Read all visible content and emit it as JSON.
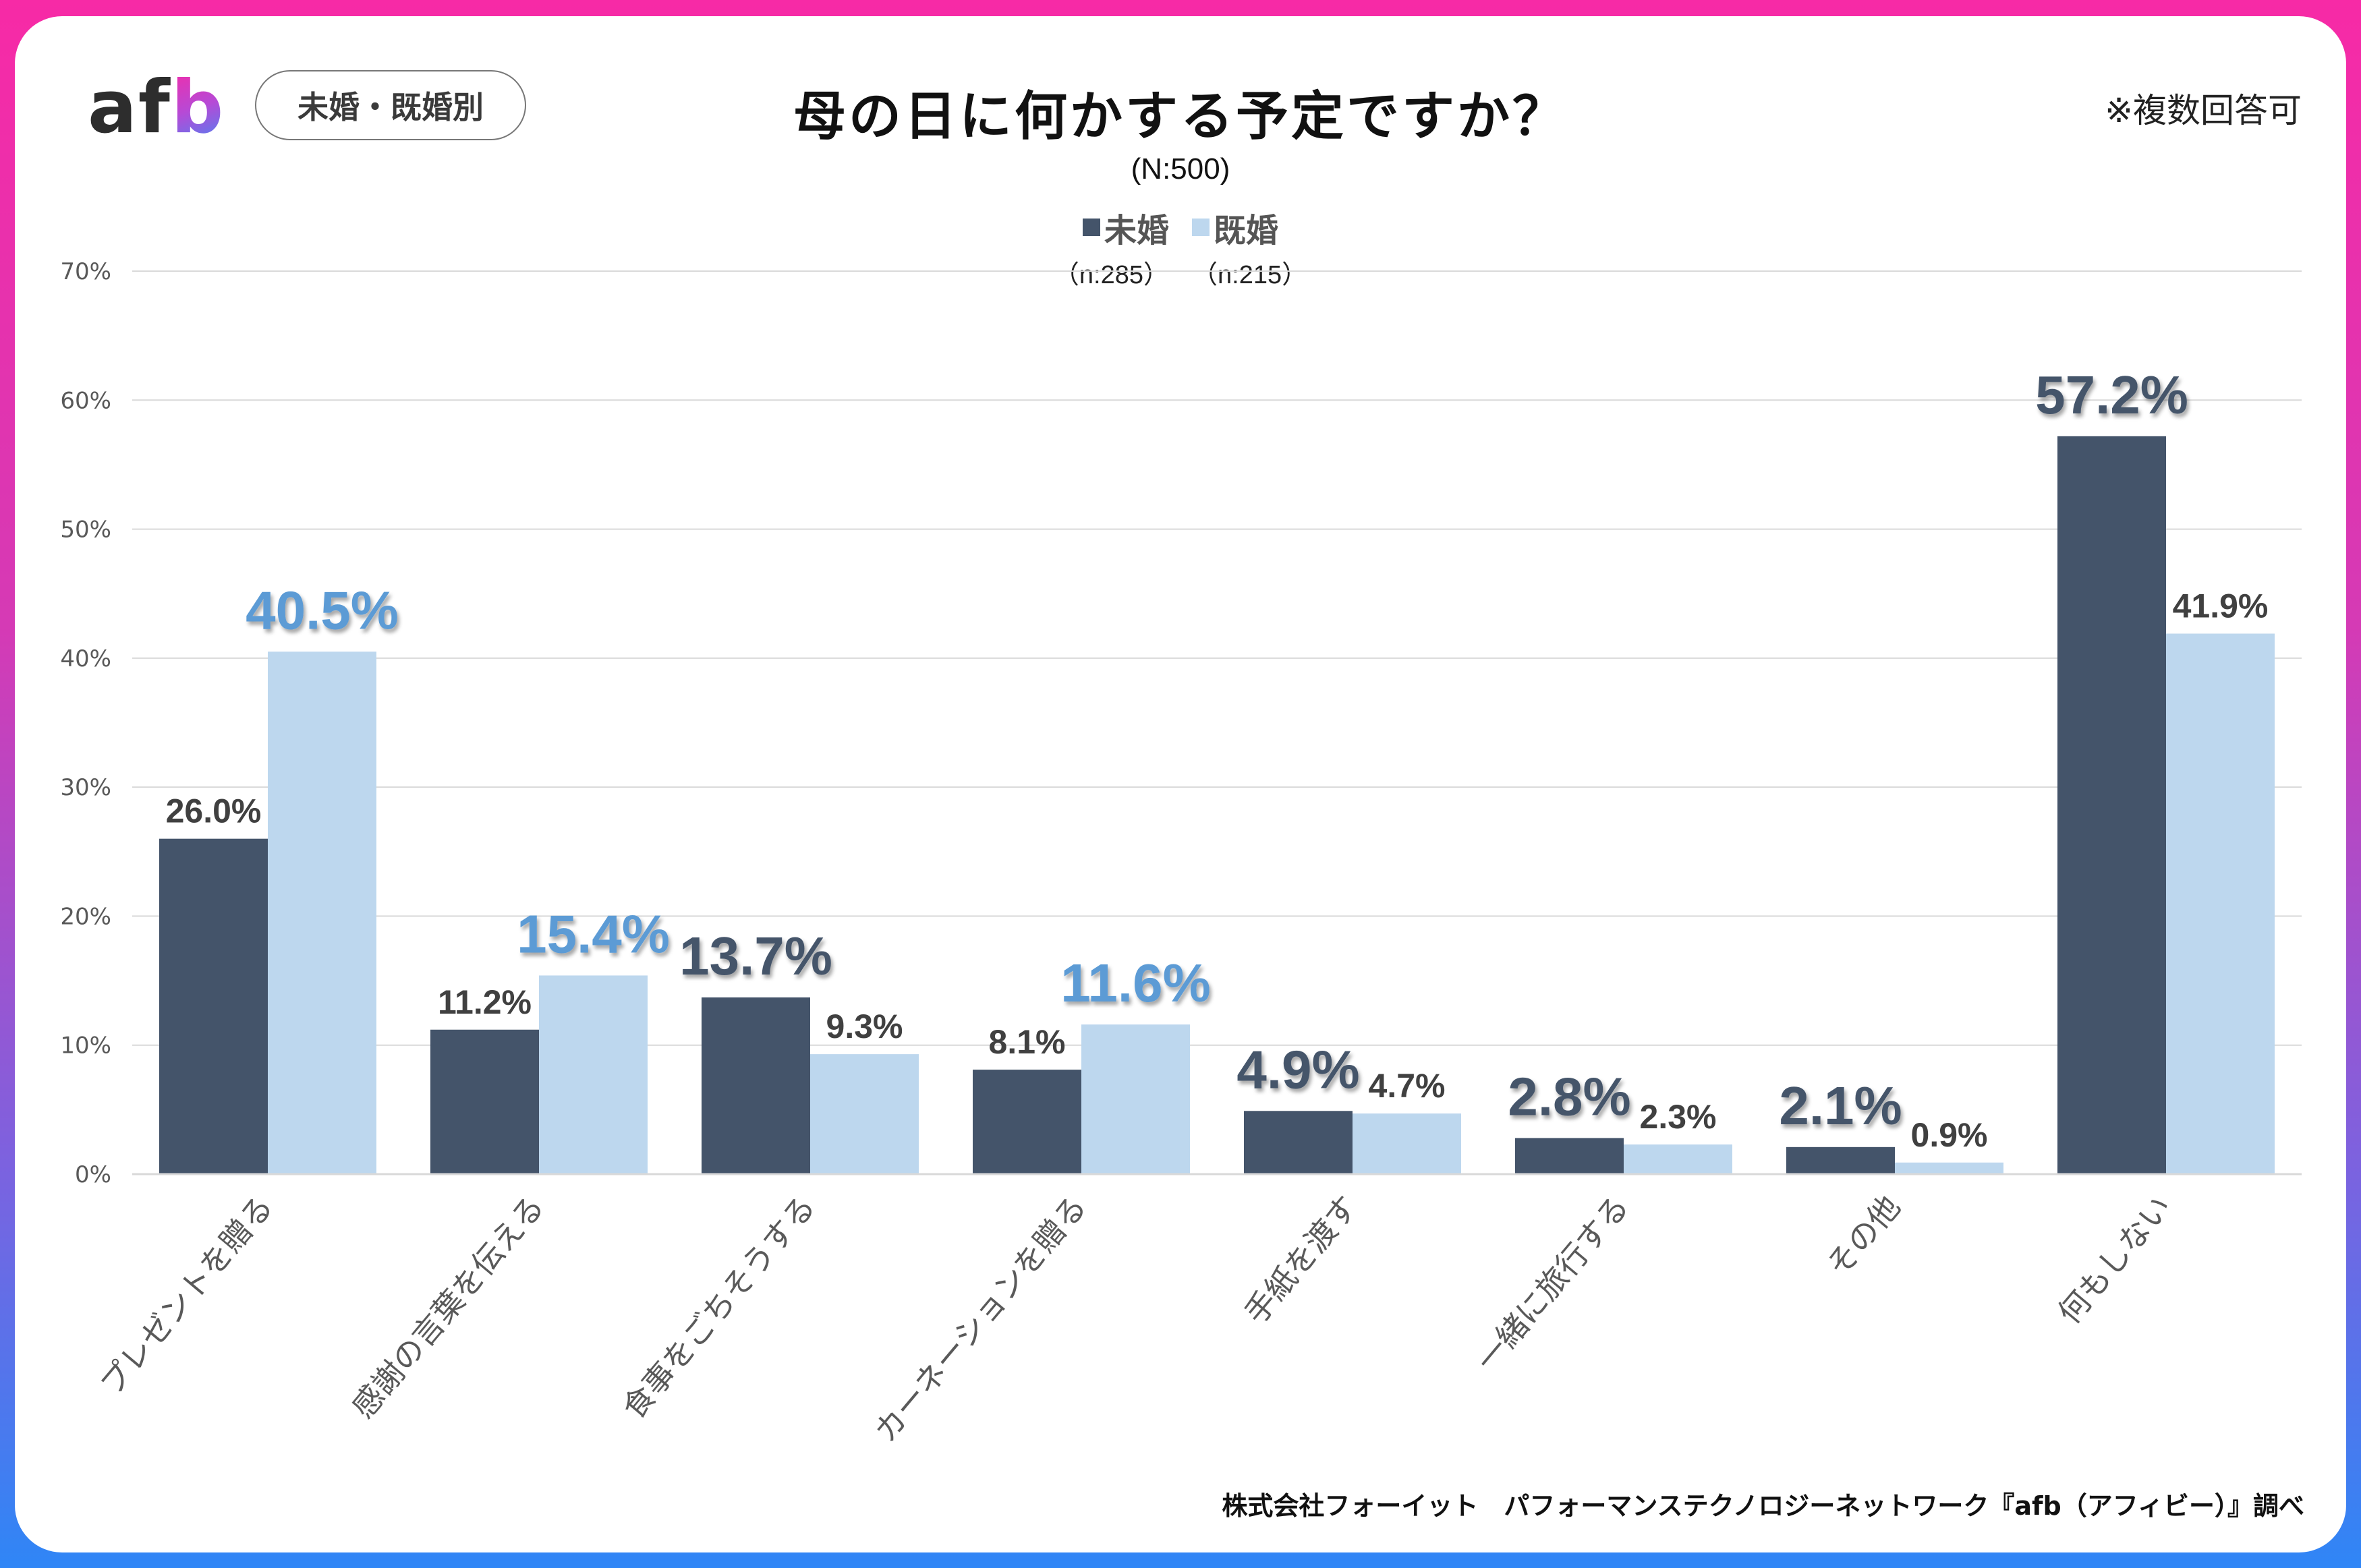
{
  "header": {
    "logo_a": "af",
    "logo_b": "b",
    "segment_pill": "未婚・既婚別",
    "title": "母の日に何かする予定ですか？",
    "subtitle": "(N:500)",
    "note": "※複数回答可"
  },
  "legend": [
    {
      "label": "未婚",
      "n": "（n:285）",
      "color": "#44546A"
    },
    {
      "label": "既婚",
      "n": "（n:215）",
      "color": "#BDD7EE"
    }
  ],
  "footer": "株式会社フォーイット　パフォーマンステクノロジーネットワーク『afb（アフィビー）』調べ",
  "colors": {
    "border_top": "#F72AA6",
    "border_bottom": "#2F86F6",
    "highlight_blue": "#5B9BD5",
    "highlight_dark": "#44546A",
    "label_normal": "#404040",
    "grid": "#D9D9D9"
  },
  "chart_data": {
    "type": "bar",
    "title": "母の日に何かする予定ですか？",
    "subtitle": "(N:500)",
    "xlabel": "",
    "ylabel": "",
    "ylim": [
      0,
      70
    ],
    "yticks": [
      0,
      10,
      20,
      30,
      40,
      50,
      60,
      70
    ],
    "ytick_labels": [
      "0%",
      "10%",
      "20%",
      "30%",
      "40%",
      "50%",
      "60%",
      "70%"
    ],
    "grid": true,
    "legend_position": "top-center",
    "categories": [
      "プレゼントを贈る",
      "感謝の言葉を伝える",
      "食事をごちそうする",
      "カーネーションを贈る",
      "手紙を渡す",
      "一緒に旅行する",
      "その他",
      "何もしない"
    ],
    "series": [
      {
        "name": "未婚",
        "n": 285,
        "color": "#44546A",
        "values": [
          26.0,
          11.2,
          13.7,
          8.1,
          4.9,
          2.8,
          2.1,
          57.2
        ],
        "labels": [
          "26.0%",
          "11.2%",
          "13.7%",
          "8.1%",
          "4.9%",
          "2.8%",
          "2.1%",
          "57.2%"
        ],
        "highlight": [
          false,
          false,
          true,
          false,
          true,
          true,
          true,
          true
        ]
      },
      {
        "name": "既婚",
        "n": 215,
        "color": "#BDD7EE",
        "values": [
          40.5,
          15.4,
          9.3,
          11.6,
          4.7,
          2.3,
          0.9,
          41.9
        ],
        "labels": [
          "40.5%",
          "15.4%",
          "9.3%",
          "11.6%",
          "4.7%",
          "2.3%",
          "0.9%",
          "41.9%"
        ],
        "highlight": [
          true,
          true,
          false,
          true,
          false,
          false,
          false,
          false
        ]
      }
    ]
  }
}
